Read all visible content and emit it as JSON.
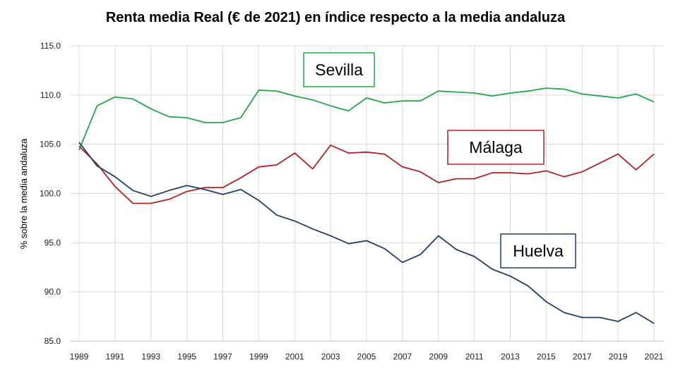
{
  "chart_data": {
    "type": "line",
    "title": "Renta media Real (€ de 2021) en índice respecto a la media andaluza",
    "ylabel": "% sobre la media andaluza",
    "xlabel": "",
    "ylim": [
      85.0,
      115.0
    ],
    "yticks": [
      "85.0",
      "90.0",
      "95.0",
      "100.0",
      "105.0",
      "110.0",
      "115.0"
    ],
    "xticks": [
      "1989",
      "1991",
      "1993",
      "1995",
      "1997",
      "1999",
      "2001",
      "2003",
      "2005",
      "2007",
      "2009",
      "2011",
      "2013",
      "2015",
      "2017",
      "2019",
      "2021"
    ],
    "x": [
      1989,
      1990,
      1991,
      1992,
      1993,
      1994,
      1995,
      1996,
      1997,
      1998,
      1999,
      2000,
      2001,
      2002,
      2003,
      2004,
      2005,
      2006,
      2007,
      2008,
      2009,
      2010,
      2011,
      2012,
      2013,
      2014,
      2015,
      2016,
      2017,
      2018,
      2019,
      2020,
      2021
    ],
    "grid": true,
    "series": [
      {
        "name": "Sevilla",
        "color": "#22a84a",
        "values": [
          104.4,
          108.9,
          109.8,
          109.6,
          108.6,
          107.8,
          107.7,
          107.2,
          107.2,
          107.7,
          110.5,
          110.4,
          109.9,
          109.5,
          108.9,
          108.4,
          109.7,
          109.2,
          109.4,
          109.4,
          110.4,
          110.3,
          110.2,
          109.9,
          110.2,
          110.4,
          110.7,
          110.6,
          110.1,
          109.9,
          109.7,
          110.1,
          109.3
        ]
      },
      {
        "name": "Málaga",
        "color": "#b22222",
        "values": [
          104.8,
          103.0,
          100.7,
          99.0,
          99.0,
          99.4,
          100.2,
          100.6,
          100.6,
          101.6,
          102.7,
          102.9,
          104.1,
          102.5,
          104.9,
          104.1,
          104.2,
          104.0,
          102.7,
          102.2,
          101.1,
          101.5,
          101.5,
          102.1,
          102.1,
          102.0,
          102.3,
          101.7,
          102.2,
          103.1,
          104.0,
          102.4,
          104.0
        ]
      },
      {
        "name": "Huelva",
        "color": "#1f3f6b",
        "values": [
          105.2,
          102.8,
          101.7,
          100.3,
          99.7,
          100.3,
          100.8,
          100.4,
          99.9,
          100.4,
          99.3,
          97.8,
          97.2,
          96.4,
          95.7,
          94.9,
          95.2,
          94.4,
          93.0,
          93.8,
          95.7,
          94.3,
          93.6,
          92.3,
          91.6,
          90.6,
          89.0,
          87.9,
          87.4,
          87.4,
          87.0,
          87.9,
          86.8
        ]
      }
    ]
  }
}
